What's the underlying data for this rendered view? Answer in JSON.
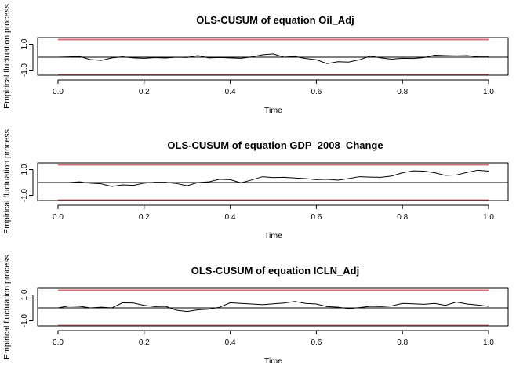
{
  "chart_data": [
    {
      "type": "line",
      "title": "OLS-CUSUM of equation Oil_Adj",
      "xlabel": "Time",
      "ylabel": "Empirical fluctuation process",
      "xlim": [
        0,
        1
      ],
      "ylim": [
        -1.36,
        1.36
      ],
      "xticks": [
        "0.0",
        "0.2",
        "0.4",
        "0.6",
        "0.8",
        "1.0"
      ],
      "yticks": [
        "-1.0",
        "1.0"
      ],
      "boundaries": {
        "upper": 1.36,
        "lower": -1.36,
        "color": "#d6707a"
      },
      "reference_line": 0,
      "series": [
        {
          "color": "#000000",
          "x": [
            0.0,
            0.025,
            0.05,
            0.075,
            0.1,
            0.125,
            0.15,
            0.175,
            0.2,
            0.225,
            0.25,
            0.275,
            0.3,
            0.325,
            0.35,
            0.375,
            0.4,
            0.425,
            0.45,
            0.475,
            0.5,
            0.525,
            0.55,
            0.575,
            0.6,
            0.625,
            0.65,
            0.675,
            0.7,
            0.725,
            0.75,
            0.775,
            0.8,
            0.825,
            0.85,
            0.875,
            0.9,
            0.925,
            0.95,
            0.975,
            1.0
          ],
          "y": [
            0.0,
            0.02,
            0.05,
            -0.18,
            -0.25,
            -0.05,
            0.03,
            -0.05,
            -0.08,
            -0.03,
            -0.06,
            0.0,
            -0.02,
            0.12,
            -0.05,
            -0.02,
            -0.05,
            -0.08,
            0.02,
            0.18,
            0.25,
            0.0,
            0.05,
            -0.1,
            -0.2,
            -0.5,
            -0.35,
            -0.38,
            -0.2,
            0.08,
            -0.05,
            -0.15,
            -0.08,
            -0.1,
            -0.03,
            0.15,
            0.12,
            0.1,
            0.12,
            0.03,
            0.02
          ]
        }
      ]
    },
    {
      "type": "line",
      "title": "OLS-CUSUM of equation GDP_2008_Change",
      "xlabel": "Time",
      "ylabel": "Empirical fluctuation process",
      "xlim": [
        0,
        1
      ],
      "ylim": [
        -1.36,
        1.36
      ],
      "xticks": [
        "0.0",
        "0.2",
        "0.4",
        "0.6",
        "0.8",
        "1.0"
      ],
      "yticks": [
        "-1.0",
        "1.0"
      ],
      "boundaries": {
        "upper": 1.36,
        "lower": -1.36,
        "color": "#d6707a"
      },
      "reference_line": 0,
      "series": [
        {
          "color": "#000000",
          "x": [
            0.0,
            0.025,
            0.05,
            0.075,
            0.1,
            0.125,
            0.15,
            0.175,
            0.2,
            0.225,
            0.25,
            0.275,
            0.3,
            0.325,
            0.35,
            0.375,
            0.4,
            0.425,
            0.45,
            0.475,
            0.5,
            0.525,
            0.55,
            0.575,
            0.6,
            0.625,
            0.65,
            0.675,
            0.7,
            0.725,
            0.75,
            0.775,
            0.8,
            0.825,
            0.85,
            0.875,
            0.9,
            0.925,
            0.95,
            0.975,
            1.0
          ],
          "y": [
            0.0,
            0.0,
            0.05,
            -0.05,
            -0.1,
            -0.3,
            -0.18,
            -0.22,
            -0.05,
            0.02,
            0.02,
            -0.08,
            -0.25,
            0.0,
            0.05,
            0.25,
            0.22,
            -0.02,
            0.2,
            0.45,
            0.38,
            0.4,
            0.35,
            0.3,
            0.22,
            0.25,
            0.18,
            0.3,
            0.45,
            0.42,
            0.4,
            0.5,
            0.75,
            0.9,
            0.88,
            0.75,
            0.55,
            0.58,
            0.78,
            0.95,
            0.88
          ]
        }
      ]
    },
    {
      "type": "line",
      "title": "OLS-CUSUM of equation ICLN_Adj",
      "xlabel": "Time",
      "ylabel": "Empirical fluctuation process",
      "xlim": [
        0,
        1
      ],
      "ylim": [
        -1.36,
        1.36
      ],
      "xticks": [
        "0.0",
        "0.2",
        "0.4",
        "0.6",
        "0.8",
        "1.0"
      ],
      "yticks": [
        "-1.0",
        "1.0"
      ],
      "boundaries": {
        "upper": 1.36,
        "lower": -1.36,
        "color": "#d6707a"
      },
      "reference_line": 0,
      "series": [
        {
          "color": "#000000",
          "x": [
            0.0,
            0.025,
            0.05,
            0.075,
            0.1,
            0.125,
            0.15,
            0.175,
            0.2,
            0.225,
            0.25,
            0.275,
            0.3,
            0.325,
            0.35,
            0.375,
            0.4,
            0.425,
            0.45,
            0.475,
            0.5,
            0.525,
            0.55,
            0.575,
            0.6,
            0.625,
            0.65,
            0.675,
            0.7,
            0.725,
            0.75,
            0.775,
            0.8,
            0.825,
            0.85,
            0.875,
            0.9,
            0.925,
            0.95,
            0.975,
            1.0
          ],
          "y": [
            0.0,
            0.15,
            0.12,
            0.0,
            0.05,
            0.0,
            0.4,
            0.38,
            0.2,
            0.1,
            0.12,
            -0.18,
            -0.28,
            -0.15,
            -0.1,
            0.05,
            0.4,
            0.35,
            0.3,
            0.25,
            0.32,
            0.38,
            0.5,
            0.35,
            0.3,
            0.1,
            0.05,
            -0.05,
            0.02,
            0.12,
            0.1,
            0.15,
            0.35,
            0.32,
            0.28,
            0.35,
            0.2,
            0.45,
            0.3,
            0.22,
            0.12
          ]
        }
      ]
    }
  ]
}
